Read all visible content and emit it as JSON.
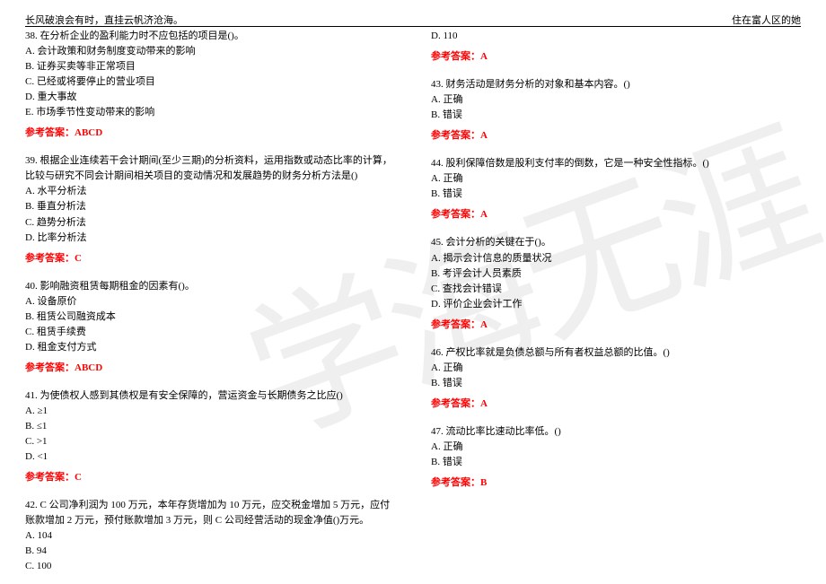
{
  "header": {
    "left": "长风破浪会有时，直挂云帆济沧海。",
    "right": "住在富人区的她"
  },
  "watermark": "学海无涯",
  "answer_label": "参考答案：",
  "left_col": [
    {
      "stem": "38. 在分析企业的盈利能力时不应包括的项目是()。",
      "options": [
        "A. 会计政策和财务制度变动带来的影响",
        "B. 证券买卖等非正常项目",
        "C. 已经或将要停止的营业项目",
        "D. 重大事故",
        "E. 市场季节性变动带来的影响"
      ],
      "answer": "ABCD"
    },
    {
      "stem": "39. 根据企业连续若干会计期间(至少三期)的分析资料，运用指数或动态比率的计算，比较与研究不同会计期间相关项目的变动情况和发展趋势的财务分析方法是()",
      "options": [
        "A. 水平分析法",
        "B. 垂直分析法",
        "C. 趋势分析法",
        "D. 比率分析法"
      ],
      "answer": "C"
    },
    {
      "stem": "40. 影响融资租赁每期租金的因素有()。",
      "options": [
        "A. 设备原价",
        "B. 租赁公司融资成本",
        "C. 租赁手续费",
        "D. 租金支付方式"
      ],
      "answer": "ABCD"
    },
    {
      "stem": "41. 为使债权人感到其债权是有安全保障的，营运资金与长期债务之比应()",
      "options": [
        "A. ≥1",
        "B. ≤1",
        "C. >1",
        "D. <1"
      ],
      "answer": "C"
    },
    {
      "stem": "42. C 公司净利润为 100 万元，本年存货增加为 10 万元，应交税金增加 5 万元，应付账款增加 2 万元，预付账款增加 3 万元，则 C 公司经营活动的现金净值()万元。",
      "options": [
        "A. 104",
        "B. 94",
        "C. 100"
      ],
      "answer": null
    }
  ],
  "right_col": [
    {
      "stem": null,
      "options": [
        "D. 110"
      ],
      "answer": "A"
    },
    {
      "stem": "43. 财务活动是财务分析的对象和基本内容。()",
      "options": [
        "A. 正确",
        "B. 错误"
      ],
      "answer": "A"
    },
    {
      "stem": "44. 股利保障倍数是股利支付率的倒数，它是一种安全性指标。()",
      "options": [
        "A. 正确",
        "B. 错误"
      ],
      "answer": "A"
    },
    {
      "stem": "45. 会计分析的关键在于()。",
      "options": [
        "A. 揭示会计信息的质量状况",
        "B. 考评会计人员素质",
        "C. 查找会计错误",
        "D. 评价企业会计工作"
      ],
      "answer": "A"
    },
    {
      "stem": "46. 产权比率就是负债总额与所有者权益总额的比值。()",
      "options": [
        "A. 正确",
        "B. 错误"
      ],
      "answer": "A"
    },
    {
      "stem": "47. 流动比率比速动比率低。()",
      "options": [
        "A. 正确",
        "B. 错误"
      ],
      "answer": "B"
    }
  ]
}
